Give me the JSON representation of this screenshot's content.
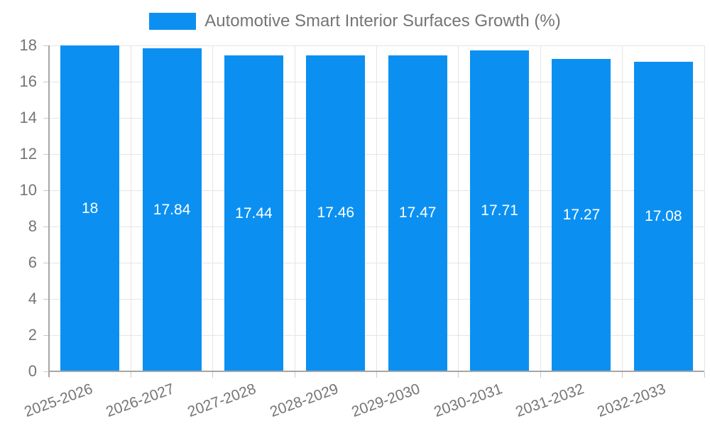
{
  "legend": {
    "swatch_color": "#0b90f2",
    "label": "Automotive Smart Interior Surfaces Growth (%)"
  },
  "colors": {
    "bar": "#0b90f2",
    "grid": "#e5e5e5",
    "axis": "#a6a6a6",
    "tick": "#c9c9c9",
    "tick_text": "#757575",
    "value_text": "#ffffff",
    "background": "#ffffff"
  },
  "chart_data": {
    "type": "bar",
    "title": "Automotive Smart Interior Surfaces Growth (%)",
    "categories": [
      "2025-2026",
      "2026-2027",
      "2027-2028",
      "2028-2029",
      "2029-2030",
      "2030-2031",
      "2031-2032",
      "2032-2033"
    ],
    "values": [
      18,
      17.84,
      17.44,
      17.46,
      17.47,
      17.71,
      17.27,
      17.08
    ],
    "value_labels": [
      "18",
      "17.84",
      "17.44",
      "17.46",
      "17.47",
      "17.71",
      "17.27",
      "17.08"
    ],
    "xlabel": "",
    "ylabel": "",
    "ylim": [
      0,
      18
    ],
    "ytick_step": 2,
    "yticks": [
      0,
      2,
      4,
      6,
      8,
      10,
      12,
      14,
      16,
      18
    ],
    "grid": true,
    "legend_position": "top-center",
    "x_label_rotation_deg": -20,
    "value_label_position": "center-of-bar"
  }
}
